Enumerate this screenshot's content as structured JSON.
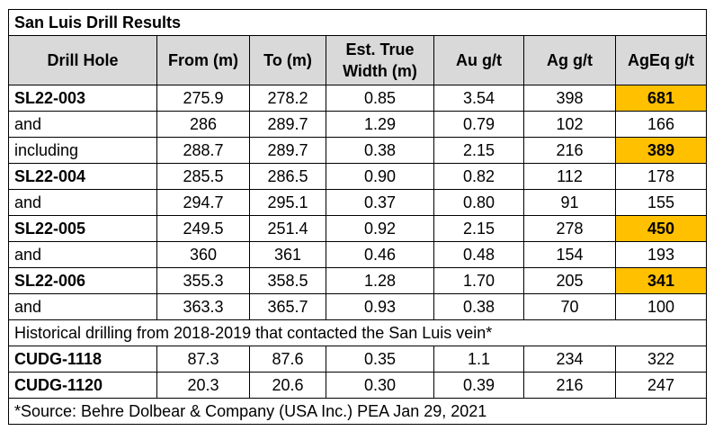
{
  "title": "San Luis Drill Results",
  "headers": [
    "Drill Hole",
    "From (m)",
    "To (m)",
    "Est. True Width (m)",
    "Au g/t",
    "Ag g/t",
    "AgEq g/t"
  ],
  "rows": [
    {
      "hole": "SL22-003",
      "from": "275.9",
      "to": "278.2",
      "width": "0.85",
      "au": "3.54",
      "ag": "398",
      "ageq": "681"
    },
    {
      "hole": "and",
      "from": "286",
      "to": "289.7",
      "width": "1.29",
      "au": "0.79",
      "ag": "102",
      "ageq": "166"
    },
    {
      "hole": "including",
      "from": "288.7",
      "to": "289.7",
      "width": "0.38",
      "au": "2.15",
      "ag": "216",
      "ageq": "389"
    },
    {
      "hole": "SL22-004",
      "from": "285.5",
      "to": "286.5",
      "width": "0.90",
      "au": "0.82",
      "ag": "112",
      "ageq": "178"
    },
    {
      "hole": "and",
      "from": "294.7",
      "to": "295.1",
      "width": "0.37",
      "au": "0.80",
      "ag": "91",
      "ageq": "155"
    },
    {
      "hole": "SL22-005",
      "from": "249.5",
      "to": "251.4",
      "width": "0.92",
      "au": "2.15",
      "ag": "278",
      "ageq": "450"
    },
    {
      "hole": "and",
      "from": "360",
      "to": "361",
      "width": "0.46",
      "au": "0.48",
      "ag": "154",
      "ageq": "193"
    },
    {
      "hole": "SL22-006",
      "from": "355.3",
      "to": "358.5",
      "width": "1.28",
      "au": "1.70",
      "ag": "205",
      "ageq": "341"
    },
    {
      "hole": "and",
      "from": "363.3",
      "to": "365.7",
      "width": "0.93",
      "au": "0.38",
      "ag": "70",
      "ageq": "100"
    }
  ],
  "historical_note": "Historical drilling from 2018-2019 that contacted the San Luis vein*",
  "historical_rows": [
    {
      "hole": "CUDG-1118",
      "from": "87.3",
      "to": "87.6",
      "width": "0.35",
      "au": "1.1",
      "ag": "234",
      "ageq": "322"
    },
    {
      "hole": "CUDG-1120",
      "from": "20.3",
      "to": "20.6",
      "width": "0.30",
      "au": "0.39",
      "ag": "216",
      "ageq": "247"
    }
  ],
  "footnote": "*Source: Behre Dolbear & Company (USA Inc.) PEA Jan 29, 2021",
  "colors": {
    "header_bg": "#d9d9d9",
    "highlight": "#ffc000"
  }
}
